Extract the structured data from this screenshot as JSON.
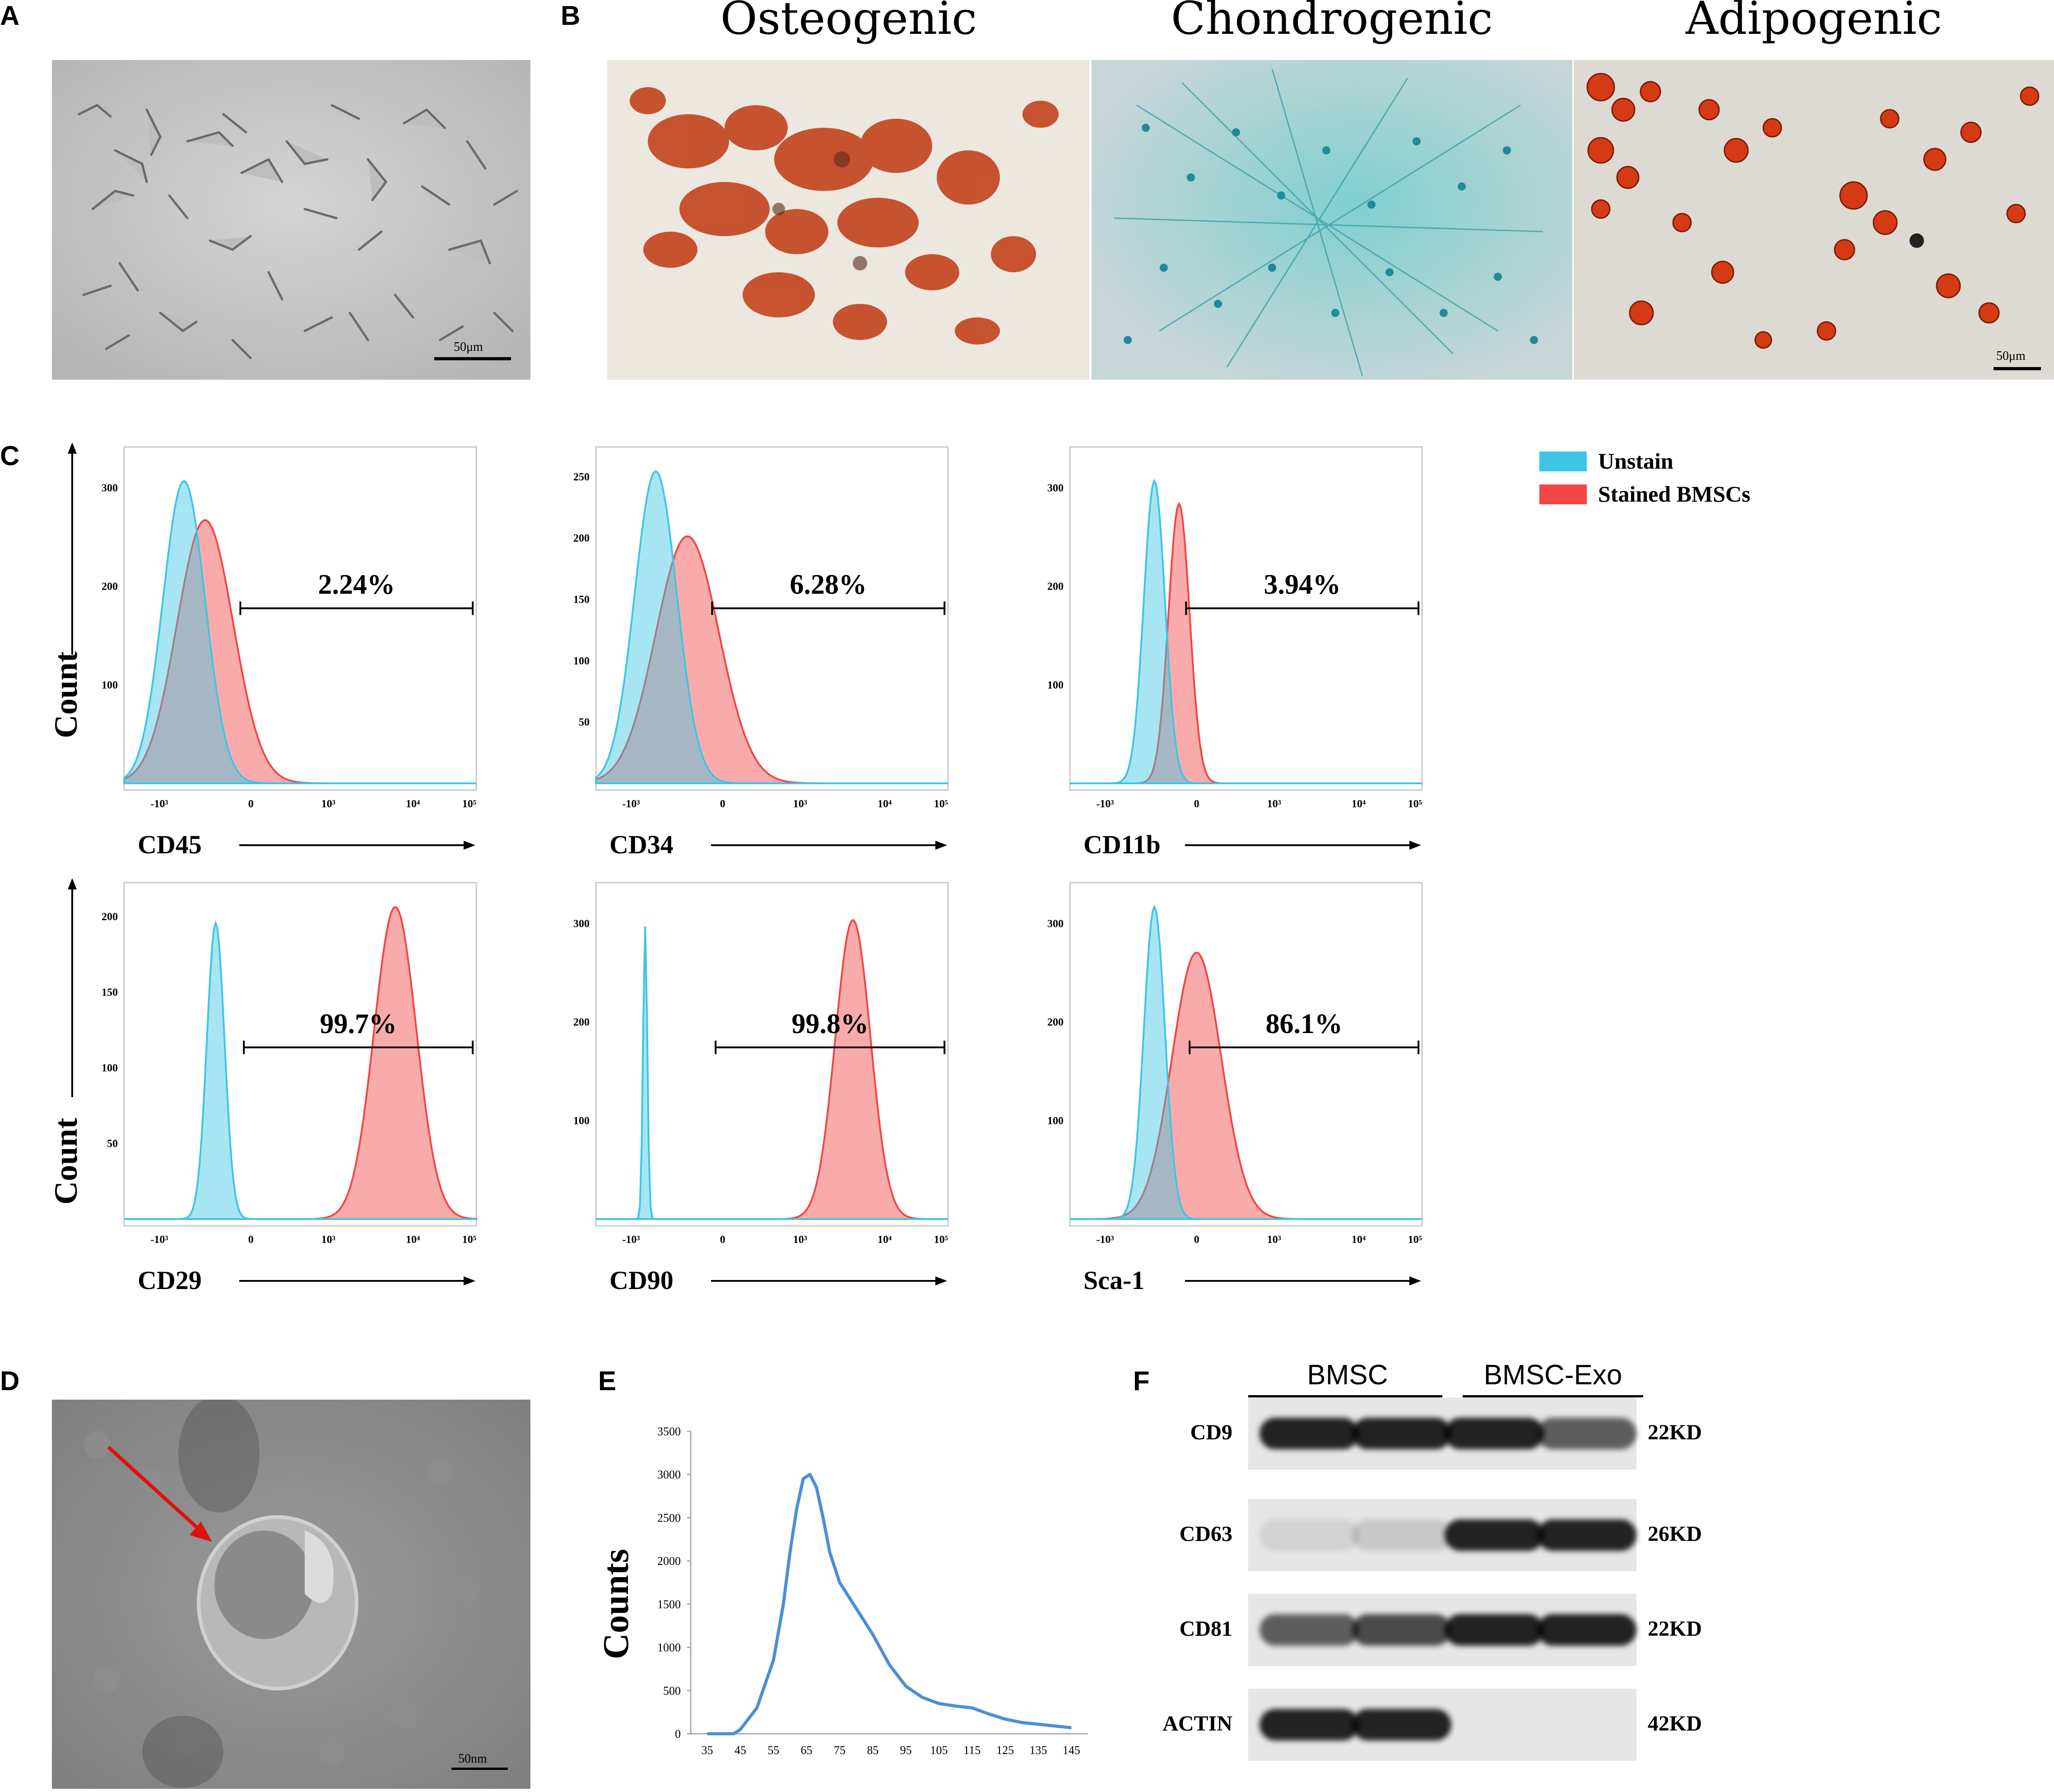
{
  "panels": {
    "A": "A",
    "B": "B",
    "C": "C",
    "D": "D",
    "E": "E",
    "F": "F"
  },
  "panel_a": {
    "scale_bar": "50μm"
  },
  "panel_b": {
    "titles": [
      "Osteogenic",
      "Chondrogenic",
      "Adipogenic"
    ],
    "scale_bar": "50μm"
  },
  "panel_c": {
    "y_label": "Count",
    "legend": [
      {
        "label": "Unstain",
        "color": "#3EC5E5"
      },
      {
        "label": "Stained BMSCs",
        "color": "#F24545"
      }
    ],
    "plots": [
      {
        "marker": "CD45",
        "percent": "2.24%",
        "yticks": [
          "100",
          "200",
          "300"
        ],
        "xticks": [
          "-10³",
          "0",
          "10³",
          "10⁴",
          "10⁵"
        ]
      },
      {
        "marker": "CD34",
        "percent": "6.28%",
        "yticks": [
          "50",
          "100",
          "150",
          "200",
          "250"
        ],
        "xticks": [
          "-10³",
          "0",
          "10³",
          "10⁴",
          "10⁵"
        ]
      },
      {
        "marker": "CD11b",
        "percent": "3.94%",
        "yticks": [
          "100",
          "200",
          "300"
        ],
        "xticks": [
          "-10³",
          "0",
          "10³",
          "10⁴",
          "10⁵"
        ]
      },
      {
        "marker": "CD29",
        "percent": "99.7%",
        "yticks": [
          "50",
          "100",
          "150",
          "200"
        ],
        "xticks": [
          "-10³",
          "0",
          "10³",
          "10⁴",
          "10⁵"
        ]
      },
      {
        "marker": "CD90",
        "percent": "99.8%",
        "yticks": [
          "100",
          "200",
          "300"
        ],
        "xticks": [
          "-10³",
          "0",
          "10³",
          "10⁴",
          "10⁵"
        ]
      },
      {
        "marker": "Sca-1",
        "percent": "86.1%",
        "yticks": [
          "100",
          "200",
          "300"
        ],
        "xticks": [
          "-10³",
          "0",
          "10³",
          "10⁴",
          "10⁵"
        ]
      }
    ]
  },
  "panel_d": {
    "scale_bar": "50nm"
  },
  "chart_data": {
    "type": "line",
    "title": "",
    "xlabel": "",
    "ylabel": "Counts",
    "xlim": [
      30,
      150
    ],
    "ylim": [
      0,
      3500
    ],
    "xticks": [
      35,
      45,
      55,
      65,
      75,
      85,
      95,
      105,
      115,
      125,
      135,
      145
    ],
    "yticks": [
      0,
      500,
      1000,
      1500,
      2000,
      2500,
      3000,
      3500
    ],
    "x": [
      35,
      40,
      43,
      45,
      50,
      55,
      58,
      60,
      62,
      64,
      66,
      68,
      70,
      72,
      75,
      80,
      85,
      90,
      95,
      100,
      105,
      110,
      115,
      120,
      125,
      130,
      135,
      140,
      145
    ],
    "series": [
      {
        "values": [
          0,
          0,
          -10,
          50,
          300,
          850,
          1500,
          2100,
          2600,
          2950,
          3000,
          2850,
          2500,
          2100,
          1750,
          1450,
          1150,
          800,
          550,
          420,
          350,
          320,
          300,
          230,
          170,
          130,
          110,
          90,
          70
        ]
      }
    ]
  },
  "panel_f": {
    "groups": [
      "BMSC",
      "BMSC-Exo"
    ],
    "rows": [
      {
        "label": "CD9",
        "size": "22KD"
      },
      {
        "label": "CD63",
        "size": "26KD"
      },
      {
        "label": "CD81",
        "size": "22KD"
      },
      {
        "label": "ACTIN",
        "size": "42KD"
      }
    ]
  }
}
